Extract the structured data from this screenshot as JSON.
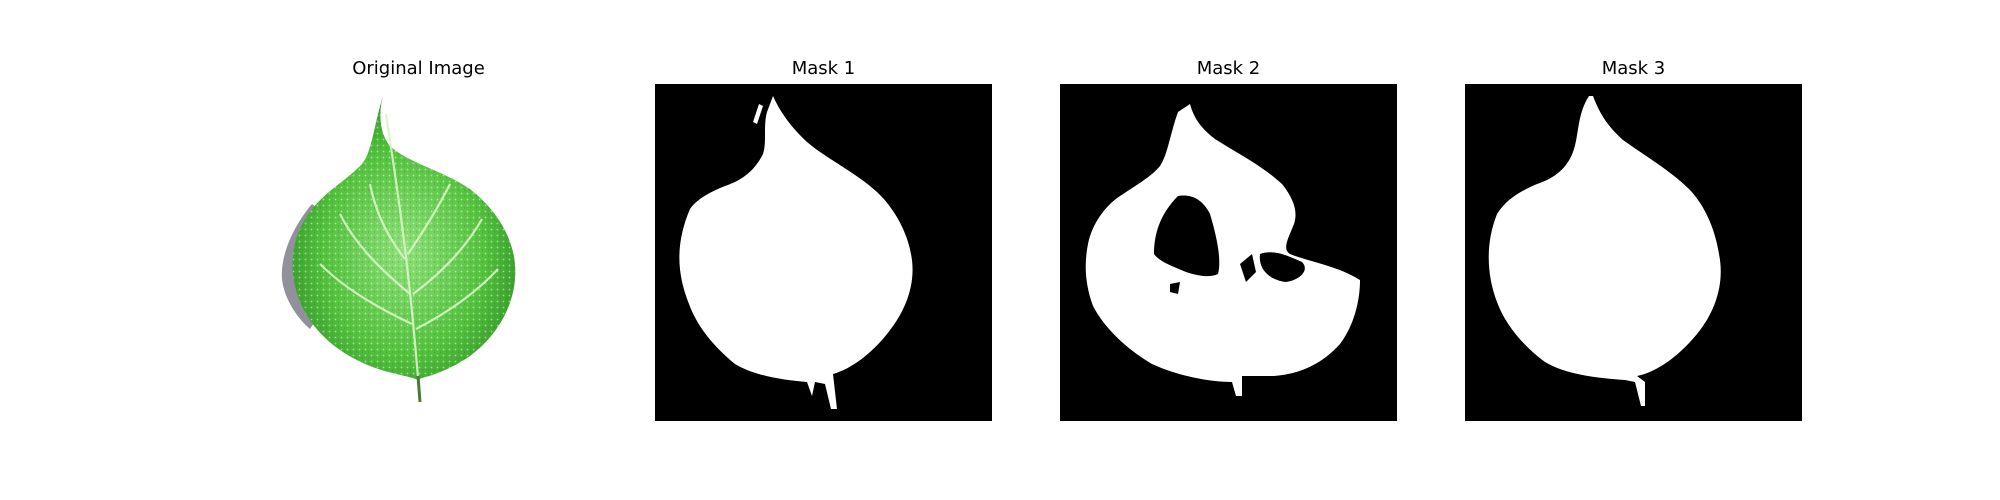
{
  "panels": [
    {
      "title": "Original Image",
      "kind": "photo"
    },
    {
      "title": "Mask 1",
      "kind": "mask"
    },
    {
      "title": "Mask 2",
      "kind": "mask"
    },
    {
      "title": "Mask 3",
      "kind": "mask"
    }
  ],
  "colors": {
    "background": "#ffffff",
    "mask_background": "#000000",
    "mask_foreground": "#ffffff",
    "leaf_light": "#8fe07a",
    "leaf_mid": "#54c23f",
    "leaf_dark": "#2e8f24",
    "vein": "#d9f5c6",
    "shadow": "#6e6b78"
  }
}
